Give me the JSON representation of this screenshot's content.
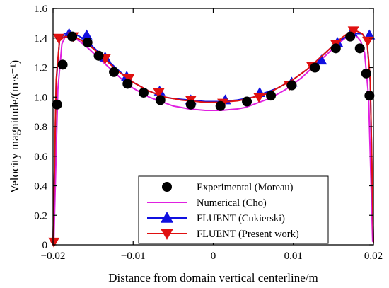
{
  "chart_data": {
    "type": "scatter",
    "xlabel": "Distance from domain vertical centerline/m",
    "ylabel": "Velocity magnitude/(m·s⁻¹)",
    "xlim": [
      -0.02,
      0.02
    ],
    "ylim": [
      0,
      1.6
    ],
    "x_ticks": [
      -0.02,
      -0.01,
      0,
      0.01,
      0.02
    ],
    "x_tick_labels": [
      "−0.02",
      "−0.01",
      "0",
      "0.01",
      "0.02"
    ],
    "y_ticks": [
      0,
      0.2,
      0.4,
      0.6,
      0.8,
      1.0,
      1.2,
      1.4,
      1.6
    ],
    "y_tick_labels": [
      "0",
      "0.2",
      "0.4",
      "0.6",
      "0.8",
      "1.0",
      "1.2",
      "1.4",
      "1.6"
    ],
    "grid": false,
    "legend_position": "bottom-right",
    "series": [
      {
        "name": "Experimental (Moreau)",
        "kind": "marker",
        "marker": "circle",
        "color": "#000000",
        "x": [
          -0.0195,
          -0.0188,
          -0.0176,
          -0.0157,
          -0.0143,
          -0.0124,
          -0.0107,
          -0.0087,
          -0.0066,
          -0.0028,
          0.0009,
          0.0042,
          0.0072,
          0.0098,
          0.0127,
          0.0153,
          0.0171,
          0.0183,
          0.0191,
          0.0195
        ],
        "y": [
          0.95,
          1.22,
          1.41,
          1.37,
          1.28,
          1.17,
          1.09,
          1.03,
          0.98,
          0.95,
          0.94,
          0.97,
          1.01,
          1.08,
          1.2,
          1.33,
          1.41,
          1.33,
          1.16,
          1.01
        ]
      },
      {
        "name": "Numerical (Cho)",
        "kind": "line",
        "color": "#e020e0",
        "x": [
          -0.0199,
          -0.0194,
          -0.0189,
          -0.0184,
          -0.0178,
          -0.017,
          -0.016,
          -0.015,
          -0.014,
          -0.013,
          -0.012,
          -0.011,
          -0.01,
          -0.009,
          -0.008,
          -0.007,
          -0.006,
          -0.005,
          -0.004,
          -0.003,
          -0.002,
          -0.001,
          0,
          0.001,
          0.002,
          0.003,
          0.004,
          0.005,
          0.006,
          0.007,
          0.008,
          0.009,
          0.01,
          0.011,
          0.012,
          0.013,
          0.014,
          0.015,
          0.016,
          0.017,
          0.0178,
          0.0184,
          0.0189,
          0.0194,
          0.0199
        ],
        "y": [
          0.02,
          1.05,
          1.36,
          1.42,
          1.42,
          1.39,
          1.35,
          1.3,
          1.25,
          1.2,
          1.15,
          1.1,
          1.06,
          1.03,
          1.0,
          0.98,
          0.96,
          0.94,
          0.93,
          0.92,
          0.915,
          0.91,
          0.91,
          0.91,
          0.915,
          0.92,
          0.93,
          0.95,
          0.97,
          0.99,
          1.02,
          1.05,
          1.09,
          1.13,
          1.18,
          1.23,
          1.28,
          1.33,
          1.38,
          1.42,
          1.42,
          1.38,
          1.3,
          1.0,
          0.02
        ]
      },
      {
        "name": "FLUENT (Cukierski)",
        "kind": "line+marker",
        "marker": "triangle-up",
        "color": "#1010e0",
        "x": [
          -0.02,
          -0.0196,
          -0.0192,
          -0.0186,
          -0.0178,
          -0.017,
          -0.016,
          -0.015,
          -0.014,
          -0.013,
          -0.012,
          -0.011,
          -0.01,
          -0.009,
          -0.008,
          -0.007,
          -0.006,
          -0.005,
          -0.004,
          -0.003,
          -0.002,
          -0.001,
          0,
          0.001,
          0.002,
          0.003,
          0.004,
          0.005,
          0.006,
          0.007,
          0.008,
          0.009,
          0.01,
          0.011,
          0.012,
          0.013,
          0.014,
          0.015,
          0.016,
          0.017,
          0.0178,
          0.0186,
          0.0192,
          0.0196,
          0.02
        ],
        "y": [
          0.01,
          1.1,
          1.38,
          1.43,
          1.43,
          1.42,
          1.39,
          1.34,
          1.29,
          1.24,
          1.19,
          1.14,
          1.1,
          1.07,
          1.04,
          1.02,
          1.0,
          0.99,
          0.985,
          0.98,
          0.975,
          0.97,
          0.97,
          0.97,
          0.975,
          0.98,
          0.99,
          1.0,
          1.02,
          1.04,
          1.06,
          1.09,
          1.12,
          1.16,
          1.2,
          1.25,
          1.3,
          1.35,
          1.39,
          1.42,
          1.43,
          1.43,
          1.38,
          1.1,
          0.01
        ],
        "marker_x": [
          -0.018,
          -0.0158,
          -0.0135,
          -0.0108,
          -0.0067,
          -0.0028,
          0.0015,
          0.0058,
          0.0098,
          0.0135,
          0.0155,
          0.0173,
          0.0195
        ],
        "marker_y": [
          1.43,
          1.42,
          1.27,
          1.14,
          1.04,
          0.98,
          0.98,
          1.03,
          1.1,
          1.25,
          1.37,
          1.44,
          1.42
        ]
      },
      {
        "name": "FLUENT (Present work)",
        "kind": "line+marker",
        "marker": "triangle-down",
        "color": "#e01010",
        "x": [
          -0.02,
          -0.0196,
          -0.0192,
          -0.0186,
          -0.0178,
          -0.017,
          -0.016,
          -0.015,
          -0.014,
          -0.013,
          -0.012,
          -0.011,
          -0.01,
          -0.009,
          -0.008,
          -0.007,
          -0.006,
          -0.005,
          -0.004,
          -0.003,
          -0.002,
          -0.001,
          0,
          0.001,
          0.002,
          0.003,
          0.004,
          0.005,
          0.006,
          0.007,
          0.008,
          0.009,
          0.01,
          0.011,
          0.012,
          0.013,
          0.014,
          0.015,
          0.016,
          0.017,
          0.0178,
          0.0186,
          0.0192,
          0.0196,
          0.02
        ],
        "y": [
          0.01,
          1.12,
          1.38,
          1.41,
          1.41,
          1.4,
          1.37,
          1.33,
          1.28,
          1.23,
          1.18,
          1.14,
          1.1,
          1.07,
          1.04,
          1.02,
          1.0,
          0.99,
          0.98,
          0.975,
          0.97,
          0.965,
          0.965,
          0.965,
          0.97,
          0.975,
          0.985,
          1.0,
          1.01,
          1.03,
          1.06,
          1.09,
          1.12,
          1.16,
          1.2,
          1.25,
          1.3,
          1.35,
          1.4,
          1.44,
          1.45,
          1.43,
          1.38,
          1.12,
          0.01
        ],
        "marker_x": [
          -0.0199,
          -0.0193,
          -0.0175,
          -0.0135,
          -0.0105,
          -0.0068,
          -0.0028,
          0.0012,
          0.0057,
          0.0095,
          0.0123,
          0.0153,
          0.0175,
          0.0193
        ],
        "marker_y": [
          0.02,
          1.4,
          1.41,
          1.26,
          1.13,
          1.03,
          0.98,
          0.96,
          1.0,
          1.08,
          1.21,
          1.36,
          1.45,
          1.38
        ]
      }
    ]
  }
}
